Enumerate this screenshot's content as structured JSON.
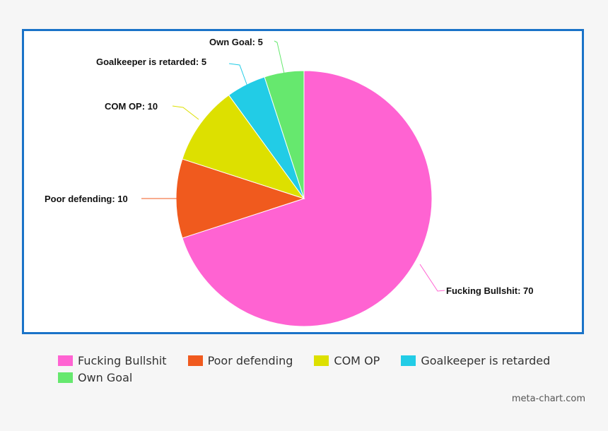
{
  "chart_data": {
    "type": "pie",
    "slices": [
      {
        "label": "Fucking Bullshit",
        "value": 70,
        "data_label": "Fucking Bullshit: 70",
        "color": "#ff63d2"
      },
      {
        "label": "Poor defending",
        "value": 10,
        "data_label": "Poor defending: 10",
        "color": "#f05a1e"
      },
      {
        "label": "COM OP",
        "value": 10,
        "data_label": "COM OP: 10",
        "color": "#dde000"
      },
      {
        "label": "Goalkeeper is retarded",
        "value": 5,
        "data_label": "Goalkeeper is retarded: 5",
        "color": "#22cce6"
      },
      {
        "label": "Own Goal",
        "value": 5,
        "data_label": "Own Goal: 5",
        "color": "#66e86e"
      }
    ],
    "start_angle": "top, clockwise",
    "legend_position": "bottom"
  },
  "credit": "meta-chart.com"
}
